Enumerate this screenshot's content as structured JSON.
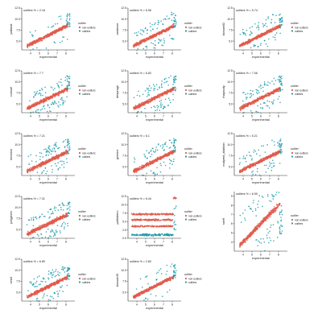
{
  "figure": {
    "colors": {
      "non_outliers": "#e05b4b",
      "outliers": "#1b9aaa",
      "axis": "#333333",
      "text": "#222222"
    }
  },
  "chart_data": [
    {
      "type": "scatter",
      "annotation": "outliers % = 2.18",
      "ylabel": "psiblast",
      "xlabel": "experimental",
      "xlim": [
        3,
        9
      ],
      "ylim": [
        3,
        12.5
      ],
      "x_ticks": [
        4,
        5,
        6,
        7,
        8
      ],
      "y_ticks": [
        5.0,
        7.5,
        10.0,
        12.5
      ],
      "legend": {
        "title": "outlier",
        "entries": [
          "non-outliers",
          "outliers"
        ]
      },
      "shape": {
        "mode": "diagonal",
        "intercept": 0.2,
        "slope": 1.02,
        "noise": 0.35,
        "outlier_fraction": 0.0218
      }
    },
    {
      "type": "scatter",
      "annotation": "outliers % = 6.96",
      "ylabel": "ambrose",
      "xlabel": "experimental",
      "xlim": [
        3,
        9
      ],
      "ylim": [
        3,
        12.5
      ],
      "x_ticks": [
        4,
        5,
        6,
        7,
        8
      ],
      "y_ticks": [
        5.0,
        7.5,
        10.0,
        12.5
      ],
      "legend": {
        "title": "outlier",
        "entries": [
          "non-outliers",
          "outliers"
        ]
      },
      "shape": {
        "mode": "diagonal",
        "intercept": 0.4,
        "slope": 0.98,
        "noise": 0.35,
        "outlier_fraction": 0.0696
      }
    },
    {
      "type": "scatter",
      "annotation": "outliers % = 5.74",
      "ylabel": "blosum62",
      "xlabel": "experimental",
      "xlim": [
        3,
        9
      ],
      "ylim": [
        3,
        12.5
      ],
      "x_ticks": [
        4,
        5,
        6,
        7,
        8
      ],
      "y_ticks": [
        5.0,
        7.5,
        10.0,
        12.5
      ],
      "legend": {
        "title": "outlier",
        "entries": [
          "non-outliers",
          "outliers"
        ]
      },
      "shape": {
        "mode": "diagonal",
        "intercept": 0.3,
        "slope": 1.0,
        "noise": 0.35,
        "outlier_fraction": 0.0574
      }
    },
    {
      "type": "scatter",
      "annotation": "outliers % = 7.7",
      "ylabel": "consurf",
      "xlabel": "experimental",
      "xlim": [
        3,
        9
      ],
      "ylim": [
        3,
        12.5
      ],
      "x_ticks": [
        4,
        5,
        6,
        7,
        8
      ],
      "y_ticks": [
        5.0,
        7.5,
        10.0,
        12.5
      ],
      "legend": {
        "title": "outlier",
        "entries": [
          "non-outliers",
          "outliers"
        ]
      },
      "shape": {
        "mode": "diagonal",
        "intercept": 0.4,
        "slope": 0.98,
        "noise": 0.38,
        "outlier_fraction": 0.077
      }
    },
    {
      "type": "scatter",
      "annotation": "outliers % = 6.83",
      "ylabel": "deeprage",
      "xlabel": "experimental",
      "xlim": [
        3,
        9
      ],
      "ylim": [
        3,
        12.5
      ],
      "x_ticks": [
        4,
        5,
        6,
        7,
        8
      ],
      "y_ticks": [
        5.0,
        7.5,
        10.0,
        12.5
      ],
      "legend": {
        "title": "outlier",
        "entries": [
          "non-outliers",
          "outliers"
        ]
      },
      "shape": {
        "mode": "diagonal",
        "intercept": 0.3,
        "slope": 1.0,
        "noise": 0.38,
        "outlier_fraction": 0.0683
      }
    },
    {
      "type": "scatter",
      "annotation": "outliers % = 7.06",
      "ylabel": "rhapsody",
      "xlabel": "experimental",
      "xlim": [
        3,
        9
      ],
      "ylim": [
        3,
        12.5
      ],
      "x_ticks": [
        4,
        5,
        6,
        7,
        8
      ],
      "y_ticks": [
        5.0,
        7.5,
        10.0,
        12.5
      ],
      "legend": {
        "title": "outlier",
        "entries": [
          "non-outliers",
          "outliers"
        ]
      },
      "shape": {
        "mode": "diagonal",
        "intercept": 0.3,
        "slope": 1.0,
        "noise": 0.38,
        "outlier_fraction": 0.0706
      }
    },
    {
      "type": "scatter",
      "annotation": "outliers % = 7.21",
      "ylabel": "envision",
      "xlabel": "experimental",
      "xlim": [
        3,
        9
      ],
      "ylim": [
        3,
        12.5
      ],
      "x_ticks": [
        4,
        5,
        6,
        7,
        8
      ],
      "y_ticks": [
        5.0,
        7.5,
        10.0,
        12.5
      ],
      "legend": {
        "title": "outlier",
        "entries": [
          "non-outliers",
          "outliers"
        ]
      },
      "shape": {
        "mode": "diagonal",
        "intercept": 0.4,
        "slope": 0.98,
        "noise": 0.4,
        "outlier_fraction": 0.0721
      }
    },
    {
      "type": "scatter",
      "annotation": "outliers % = 6.1",
      "ylabel": "gemme",
      "xlabel": "experimental",
      "xlim": [
        3,
        9
      ],
      "ylim": [
        3,
        12.5
      ],
      "x_ticks": [
        4,
        5,
        6,
        7,
        8
      ],
      "y_ticks": [
        5.0,
        7.5,
        10.0,
        12.5
      ],
      "legend": {
        "title": "outlier",
        "entries": [
          "non-outliers",
          "outliers"
        ]
      },
      "shape": {
        "mode": "diagonal",
        "intercept": 0.3,
        "slope": 1.0,
        "noise": 0.35,
        "outlier_fraction": 0.061
      }
    },
    {
      "type": "scatter",
      "annotation": "outliers % = 5.21",
      "ylabel": "mutpred_ablation",
      "xlabel": "experimental",
      "xlim": [
        3,
        9
      ],
      "ylim": [
        3,
        12.5
      ],
      "x_ticks": [
        4,
        5,
        6,
        7,
        8
      ],
      "y_ticks": [
        5.0,
        7.5,
        10.0,
        12.5
      ],
      "legend": {
        "title": "outlier",
        "entries": [
          "non-outliers",
          "outliers"
        ]
      },
      "shape": {
        "mode": "diagonal",
        "intercept": 0.3,
        "slope": 1.0,
        "noise": 0.33,
        "outlier_fraction": 0.0521
      }
    },
    {
      "type": "scatter",
      "annotation": "outliers % = 7.31",
      "ylabel": "polyphen",
      "xlabel": "experimental",
      "xlim": [
        3,
        9
      ],
      "ylim": [
        3,
        12.5
      ],
      "x_ticks": [
        4,
        5,
        6,
        7,
        8
      ],
      "y_ticks": [
        5.0,
        7.5,
        10.0,
        12.5
      ],
      "legend": {
        "title": "outlier",
        "entries": [
          "non-outliers",
          "outliers"
        ]
      },
      "shape": {
        "mode": "diagonal",
        "intercept": 0.4,
        "slope": 0.98,
        "noise": 0.4,
        "outlier_fraction": 0.0731
      }
    },
    {
      "type": "scatter",
      "annotation": "outliers % = 6.44",
      "ylabel": "pathdemo",
      "xlabel": "experimental",
      "xlim": [
        3,
        9
      ],
      "ylim": [
        0,
        12.5
      ],
      "x_ticks": [
        4,
        5,
        6,
        7,
        8
      ],
      "y_ticks": [
        0.0,
        2.5,
        5.0,
        7.5,
        10.0,
        12.5
      ],
      "legend": {
        "title": "outlier",
        "entries": [
          "non-outliers",
          "outliers"
        ]
      },
      "shape": {
        "mode": "bands",
        "bands": [
          {
            "y": 7.2,
            "spread": 0.25,
            "group": "non-outliers"
          },
          {
            "y": 5.5,
            "spread": 0.25,
            "group": "non-outliers"
          },
          {
            "y": 3.6,
            "spread": 0.2,
            "group": "non-outliers"
          },
          {
            "y": 1.0,
            "spread": 0.3,
            "group": "outliers"
          }
        ],
        "right_cluster_y": 12.0,
        "outlier_fraction": 0.0644
      }
    },
    {
      "type": "scatter",
      "annotation": "outliers % = 6.59",
      "ylabel": "sneft",
      "xlabel": "experimental",
      "xlim": [
        3,
        9
      ],
      "ylim": [
        3,
        9.5
      ],
      "x_ticks": [
        4,
        5,
        6,
        7,
        8
      ],
      "y_ticks": [
        4,
        5,
        6,
        7,
        8,
        9
      ],
      "legend": {
        "title": "outlier",
        "entries": [
          "non-outliers",
          "outliers"
        ]
      },
      "shape": {
        "mode": "diagonal",
        "intercept": 0.0,
        "slope": 1.0,
        "noise": 0.25,
        "outlier_fraction": 0.0659
      }
    },
    {
      "type": "scatter",
      "annotation": "outliers % = 6.89",
      "ylabel": "vest4",
      "xlabel": "experimental",
      "xlim": [
        3,
        9
      ],
      "ylim": [
        3,
        12.5
      ],
      "x_ticks": [
        4,
        5,
        6,
        7,
        8
      ],
      "y_ticks": [
        5.0,
        7.5,
        10.0,
        12.5
      ],
      "legend": {
        "title": "outlier",
        "entries": [
          "non-outliers",
          "outliers"
        ]
      },
      "shape": {
        "mode": "diagonal",
        "intercept": 0.3,
        "slope": 1.0,
        "noise": 0.38,
        "outlier_fraction": 0.0689
      }
    },
    {
      "type": "scatter",
      "annotation": "outliers % = 2.80",
      "ylabel": "blosum45",
      "xlabel": "experimental",
      "xlim": [
        3,
        9
      ],
      "ylim": [
        3,
        12.5
      ],
      "x_ticks": [
        4,
        5,
        6,
        7,
        8
      ],
      "y_ticks": [
        5.0,
        7.5,
        10.0,
        12.5
      ],
      "legend": {
        "title": "outlier",
        "entries": [
          "non-outliers",
          "outliers"
        ]
      },
      "shape": {
        "mode": "diagonal",
        "intercept": 0.2,
        "slope": 1.02,
        "noise": 0.33,
        "outlier_fraction": 0.028
      }
    }
  ]
}
